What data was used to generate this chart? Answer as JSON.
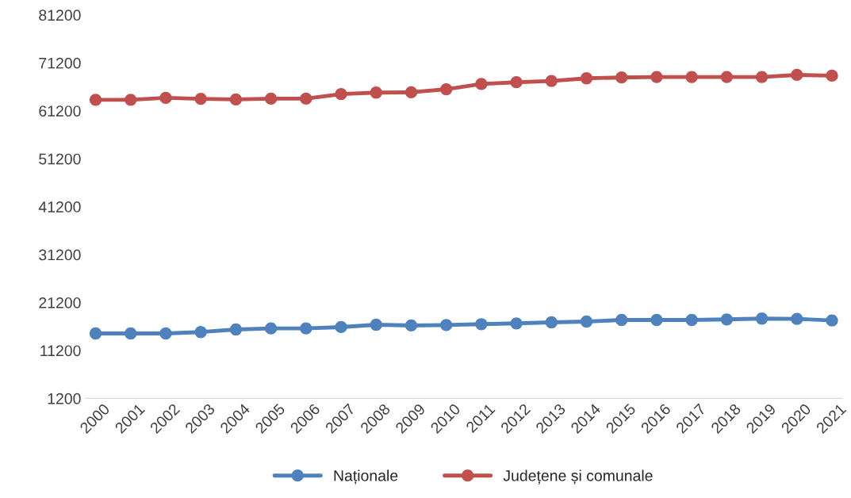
{
  "chart_data": {
    "type": "line",
    "categories": [
      "2000",
      "2001",
      "2002",
      "2003",
      "2004",
      "2005",
      "2006",
      "2007",
      "2008",
      "2009",
      "2010",
      "2011",
      "2012",
      "2013",
      "2014",
      "2015",
      "2016",
      "2017",
      "2018",
      "2019",
      "2020",
      "2021"
    ],
    "series": [
      {
        "name": "Naționale",
        "color": "#4f81bd",
        "values": [
          14750,
          14750,
          14750,
          15040,
          15580,
          15800,
          15800,
          16080,
          16570,
          16410,
          16500,
          16690,
          16850,
          17070,
          17230,
          17560,
          17560,
          17560,
          17680,
          17850,
          17780,
          17450
        ]
      },
      {
        "name": "Județene și comunale",
        "color": "#c0504d",
        "values": [
          63500,
          63500,
          63900,
          63700,
          63570,
          63730,
          63730,
          64700,
          65000,
          65060,
          65700,
          66800,
          67160,
          67430,
          67980,
          68150,
          68260,
          68260,
          68260,
          68260,
          68690,
          68530
        ]
      }
    ],
    "ylim": [
      1200,
      81200
    ],
    "yticks": [
      1200,
      11200,
      21200,
      31200,
      41200,
      51200,
      61200,
      71200,
      81200
    ],
    "grid": false,
    "legend": "bottom",
    "marker": "circle",
    "line_style": "solid"
  }
}
